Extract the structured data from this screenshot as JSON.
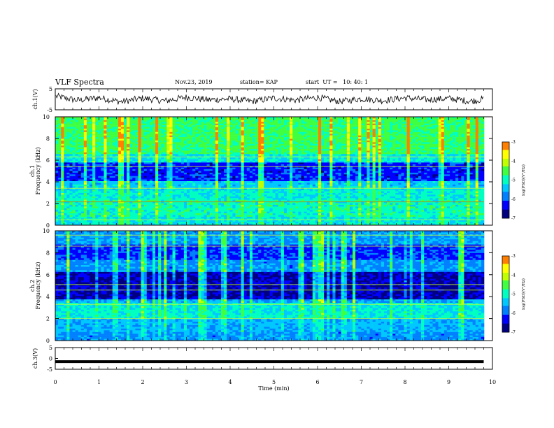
{
  "header": {
    "title": "VLF Spectra",
    "date": "Nov.23, 2019",
    "station": "station= KAP",
    "start": "start  UT =   10: 40: 1"
  },
  "colors": {
    "colormap": [
      "#000080",
      "#0000ff",
      "#0080ff",
      "#00c8ff",
      "#00ffc0",
      "#40ff40",
      "#c0ff00",
      "#ffff00",
      "#ff8000",
      "#ff0000",
      "#ffffff"
    ]
  },
  "chart_data": [
    {
      "type": "line",
      "id": "ch1-waveform",
      "ylabel": "ch.1(V)",
      "ylim": [
        -5,
        5
      ],
      "yticks": [
        "5",
        "-5"
      ],
      "x": [
        0,
        0.5,
        1,
        1.5,
        2,
        2.5,
        3,
        3.5,
        4,
        4.5,
        5,
        5.5,
        6,
        6.5,
        7,
        7.5,
        8,
        8.5,
        9,
        9.5,
        9.8
      ],
      "values": [
        1.5,
        -0.5,
        0.8,
        -1.2,
        0.5,
        -0.8,
        1.0,
        -0.3,
        0.2,
        -1.0,
        0.6,
        -0.4,
        0.9,
        -1.1,
        0.3,
        -0.6,
        0.7,
        -0.2,
        0.4,
        -0.9,
        0.1
      ]
    },
    {
      "type": "heatmap",
      "id": "ch1-spectrogram",
      "ylabel": "ch.1\nFrequency (kHz)",
      "ylim": [
        0,
        10
      ],
      "yticks": [
        "0",
        "2",
        "4",
        "6",
        "8",
        "10"
      ],
      "colorbar": {
        "min": -7,
        "max": -3,
        "ticks": [
          "-3",
          "-4",
          "-5",
          "-6",
          "-7"
        ],
        "label": "log(PSD)(V²/Hz)"
      }
    },
    {
      "type": "heatmap",
      "id": "ch2-spectrogram",
      "ylabel": "ch.2\nFrequency (kHz)",
      "ylim": [
        0,
        10
      ],
      "yticks": [
        "0",
        "2",
        "4",
        "6",
        "8",
        "10"
      ],
      "colorbar": {
        "min": -7,
        "max": -3,
        "ticks": [
          "-3",
          "-4",
          "-5",
          "-6",
          "-7"
        ],
        "label": "log(PSD)(V²/Hz)"
      }
    },
    {
      "type": "line",
      "id": "ch3-waveform",
      "ylabel": "ch.3(V)",
      "ylim": [
        -5,
        5
      ],
      "yticks": [
        "5",
        "0",
        "-5"
      ],
      "x": [
        0,
        9.8
      ],
      "values": [
        -1.5,
        -1.5
      ]
    }
  ],
  "xaxis": {
    "label": "Time (min)",
    "range": [
      0,
      10
    ],
    "ticks": [
      "0",
      "1",
      "2",
      "3",
      "4",
      "5",
      "6",
      "7",
      "8",
      "9",
      "10"
    ]
  }
}
